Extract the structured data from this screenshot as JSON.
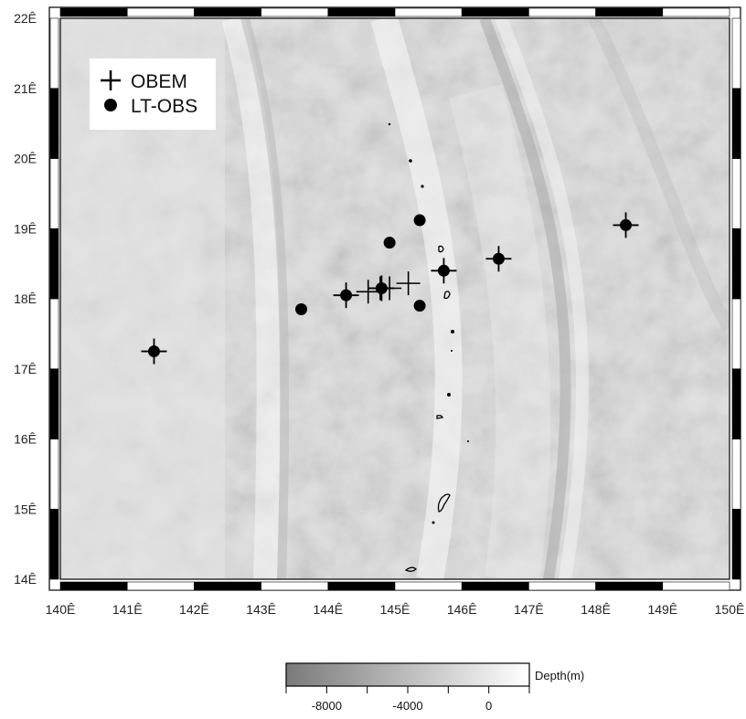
{
  "map": {
    "lon_range": [
      140,
      150
    ],
    "lat_range": [
      14,
      22
    ],
    "x_tick_labels": [
      "140Ê",
      "141Ê",
      "142Ê",
      "143Ê",
      "144Ê",
      "145Ê",
      "146Ê",
      "147Ê",
      "148Ê",
      "149Ê",
      "150Ê"
    ],
    "y_tick_labels": [
      "14Ê",
      "15Ê",
      "16Ê",
      "17Ê",
      "18Ê",
      "19Ê",
      "20Ê",
      "21Ê",
      "22Ê"
    ],
    "frame_colors": {
      "dark": "#000000",
      "light": "#ffffff"
    },
    "shading": "shaded-relief bathymetry, grayscale"
  },
  "legend": {
    "items": [
      {
        "label": "OBEM",
        "symbol": "plus-icon"
      },
      {
        "label": "LT-OBS",
        "symbol": "dot-icon"
      }
    ]
  },
  "colorbar": {
    "label": "Depth(m)",
    "tick_labels": [
      "-8000",
      "-4000",
      "0"
    ],
    "tick_values": [
      -8000,
      -4000,
      0
    ],
    "range": [
      -10000,
      2000
    ],
    "colors": {
      "deep": "#7a7a7a",
      "shallow": "#ffffff"
    }
  },
  "stations": {
    "obem": [
      {
        "lon": 144.6,
        "lat": 18.1
      },
      {
        "lon": 144.78,
        "lat": 18.15
      },
      {
        "lon": 144.92,
        "lat": 18.15
      },
      {
        "lon": 145.2,
        "lat": 18.22
      }
    ],
    "combined": [
      {
        "lon": 141.4,
        "lat": 17.25
      },
      {
        "lon": 144.27,
        "lat": 18.05
      },
      {
        "lon": 144.8,
        "lat": 18.15
      },
      {
        "lon": 145.73,
        "lat": 18.4
      },
      {
        "lon": 146.55,
        "lat": 18.57
      },
      {
        "lon": 148.45,
        "lat": 19.05
      }
    ],
    "lt_obs": [
      {
        "lon": 143.6,
        "lat": 17.85
      },
      {
        "lon": 144.92,
        "lat": 18.8
      },
      {
        "lon": 145.37,
        "lat": 19.12
      },
      {
        "lon": 145.37,
        "lat": 17.9
      }
    ]
  }
}
